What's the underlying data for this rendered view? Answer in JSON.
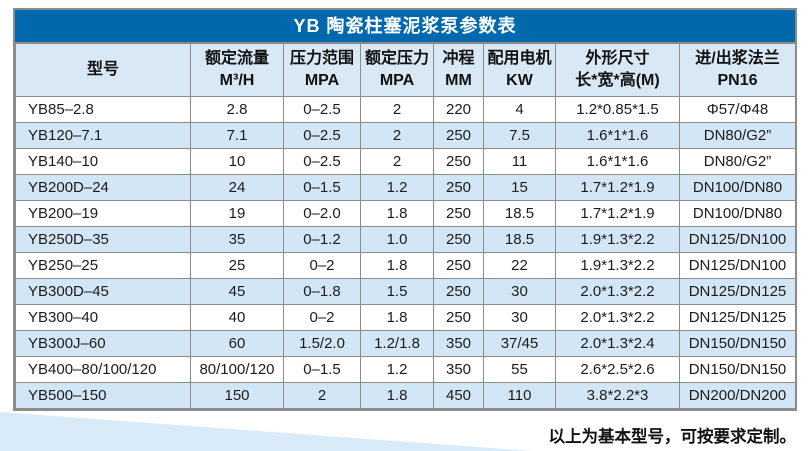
{
  "table": {
    "title": "YB 陶瓷柱塞泥浆泵参数表",
    "columns": [
      {
        "line1": "型号",
        "line2": ""
      },
      {
        "line1": "额定流量",
        "line2": "M³/H"
      },
      {
        "line1": "压力范围",
        "line2": "MPA"
      },
      {
        "line1": "额定压力",
        "line2": "MPA"
      },
      {
        "line1": "冲程",
        "line2": "MM"
      },
      {
        "line1": "配用电机",
        "line2": "KW"
      },
      {
        "line1": "外形尺寸",
        "line2": "长*宽*高(M)"
      },
      {
        "line1": "进/出浆法兰",
        "line2": "PN16"
      }
    ],
    "rows": [
      [
        "YB85–2.8",
        "2.8",
        "0–2.5",
        "2",
        "220",
        "4",
        "1.2*0.85*1.5",
        "Φ57/Φ48"
      ],
      [
        "YB120–7.1",
        "7.1",
        "0–2.5",
        "2",
        "250",
        "7.5",
        "1.6*1*1.6",
        "DN80/G2”"
      ],
      [
        "YB140–10",
        "10",
        "0–2.5",
        "2",
        "250",
        "11",
        "1.6*1*1.6",
        "DN80/G2”"
      ],
      [
        "YB200D–24",
        "24",
        "0–1.5",
        "1.2",
        "250",
        "15",
        "1.7*1.2*1.9",
        "DN100/DN80"
      ],
      [
        "YB200–19",
        "19",
        "0–2.0",
        "1.8",
        "250",
        "18.5",
        "1.7*1.2*1.9",
        "DN100/DN80"
      ],
      [
        "YB250D–35",
        "35",
        "0–1.2",
        "1.0",
        "250",
        "18.5",
        "1.9*1.3*2.2",
        "DN125/DN100"
      ],
      [
        "YB250–25",
        "25",
        "0–2",
        "1.8",
        "250",
        "22",
        "1.9*1.3*2.2",
        "DN125/DN100"
      ],
      [
        "YB300D–45",
        "45",
        "0–1.8",
        "1.5",
        "250",
        "30",
        "2.0*1.3*2.2",
        "DN125/DN125"
      ],
      [
        "YB300–40",
        "40",
        "0–2",
        "1.8",
        "250",
        "30",
        "2.0*1.3*2.2",
        "DN125/DN125"
      ],
      [
        "YB300J–60",
        "60",
        "1.5/2.0",
        "1.2/1.8",
        "350",
        "37/45",
        "2.0*1.3*2.4",
        "DN150/DN150"
      ],
      [
        "YB400–80/100/120",
        "80/100/120",
        "0–1.5",
        "1.2",
        "350",
        "55",
        "2.6*2.5*2.6",
        "DN150/DN150"
      ],
      [
        "YB500–150",
        "150",
        "2",
        "1.8",
        "450",
        "110",
        "3.8*2.2*3",
        "DN200/DN200"
      ]
    ]
  },
  "footer": {
    "note": "以上为基本型号，可按要求定制。"
  },
  "colors": {
    "title_bar_bg": "#0068ad",
    "title_text": "#ffffff",
    "header_bg": "#d8e8f4",
    "row_alt_bg": "#d2e6f6",
    "border": "#8c8c8c",
    "wedge": "#d9ebf8"
  }
}
